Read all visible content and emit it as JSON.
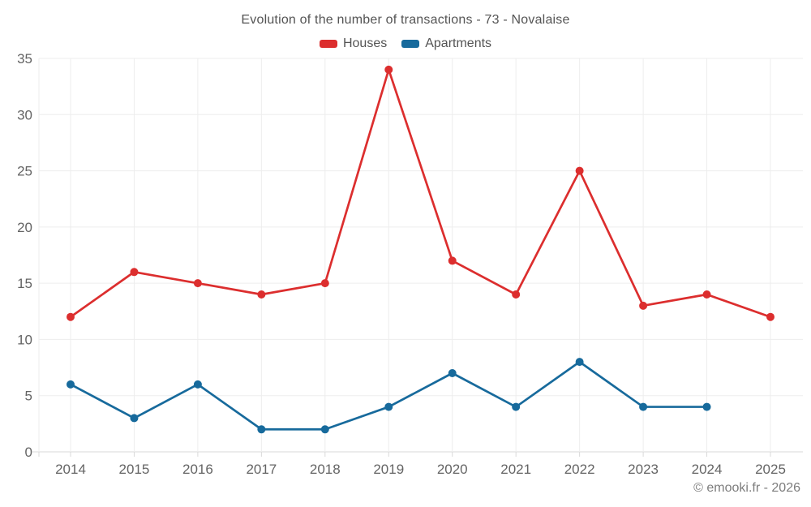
{
  "title": "Evolution of the number of transactions - 73 - Novalaise",
  "footer": "© emooki.fr - 2026",
  "colors": {
    "background": "#ffffff",
    "grid": "#ededed",
    "axis": "#d9d9d9",
    "tick_label": "#646464",
    "title_text": "#545454",
    "footer_text": "#7d7d7d"
  },
  "chart_data": {
    "type": "line",
    "title": "Evolution of the number of transactions - 73 - Novalaise",
    "x": [
      "2014",
      "2015",
      "2016",
      "2017",
      "2018",
      "2019",
      "2020",
      "2021",
      "2022",
      "2023",
      "2024",
      "2025"
    ],
    "series": [
      {
        "name": "Houses",
        "color": "#dc2e2e",
        "values": [
          12,
          16,
          15,
          14,
          15,
          34,
          17,
          14,
          25,
          13,
          14,
          12
        ]
      },
      {
        "name": "Apartments",
        "color": "#176a9c",
        "values": [
          6,
          3,
          6,
          2,
          2,
          4,
          7,
          4,
          8,
          4,
          4,
          null
        ]
      }
    ],
    "xlabel": "",
    "ylabel": "",
    "ylim": [
      0,
      35
    ],
    "ytick_step": 5,
    "yticks": [
      0,
      5,
      10,
      15,
      20,
      25,
      30,
      35
    ],
    "grid": true,
    "legend_position": "top"
  }
}
